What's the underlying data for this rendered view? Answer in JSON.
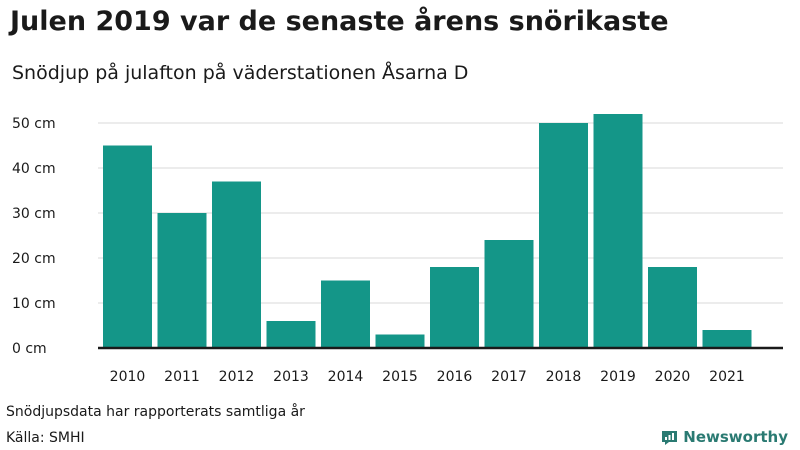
{
  "header": {
    "title": "Julen 2019 var de senaste årens snörikaste",
    "subtitle": "Snödjup på julafton på väderstationen Åsarna D"
  },
  "footer": {
    "note": "Snödjupsdata har rapporterats samtliga år",
    "source": "Källa: SMHI",
    "brand": "Newsworthy",
    "brand_icon": "newsworthy-logo-icon"
  },
  "colors": {
    "bar": "#149688",
    "grid": "#d9d9d9",
    "axis": "#1a1a1a",
    "text": "#1a1a1a",
    "brand": "#2a7a72"
  },
  "chart_data": {
    "type": "bar",
    "title": "Julen 2019 var de senaste årens snörikaste",
    "subtitle": "Snödjup på julafton på väderstationen Åsarna D",
    "categories": [
      "2010",
      "2011",
      "2012",
      "2013",
      "2014",
      "2015",
      "2016",
      "2017",
      "2018",
      "2019",
      "2020",
      "2021"
    ],
    "values": [
      45,
      30,
      37,
      6,
      15,
      3,
      18,
      24,
      50,
      52,
      18,
      4
    ],
    "unit": "cm",
    "yticks": [
      0,
      10,
      20,
      30,
      40,
      50
    ],
    "ytick_labels": [
      "0 cm",
      "10 cm",
      "20 cm",
      "30 cm",
      "40 cm",
      "50 cm"
    ],
    "ylim": [
      0,
      55
    ],
    "grid": true,
    "legend": "none"
  }
}
